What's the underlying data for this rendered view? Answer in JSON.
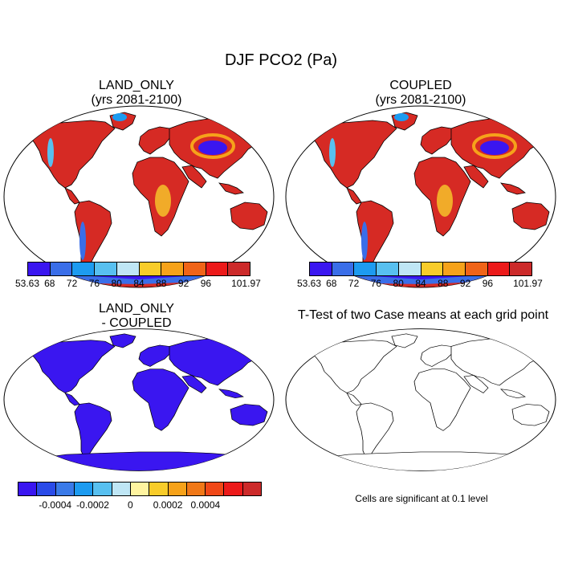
{
  "title": "DJF PCO2 (Pa)",
  "panels": {
    "top_left": {
      "title_line1": "LAND_ONLY",
      "title_line2": "(yrs 2081-2100)"
    },
    "top_right": {
      "title_line1": "COUPLED",
      "title_line2": "(yrs 2081-2100)"
    },
    "bottom_left": {
      "title_line1": "LAND_ONLY",
      "title_line2": "- COUPLED"
    },
    "bottom_right": {
      "title": "T-Test of two Case means at each grid point",
      "note": "Cells are significant at 0.1 level"
    }
  },
  "colorbar_top": {
    "colors": [
      "#3a16f0",
      "#3a6ee8",
      "#1d9bf0",
      "#58c0f0",
      "#bfe6f5",
      "#f8cc2a",
      "#f6a21a",
      "#f06418",
      "#ec1a1a",
      "#cc2a2a"
    ],
    "labels": [
      "53.63",
      "68",
      "72",
      "76",
      "80",
      "84",
      "88",
      "92",
      "96",
      "101.97"
    ]
  },
  "colorbar_bottom": {
    "colors": [
      "#3a16f0",
      "#2a4be8",
      "#3a7ae8",
      "#1d9bf0",
      "#58c0f0",
      "#bfe6f5",
      "#fff4a0",
      "#f8cc2a",
      "#f6a21a",
      "#f07818",
      "#f04818",
      "#ec1a1a",
      "#cc2a2a"
    ],
    "labels": [
      "-0.0004",
      "-0.0002",
      "0",
      "0.0002",
      "0.0004"
    ]
  },
  "map_colors": {
    "land_top": "#d62a24",
    "land_bottom": "#3a16f0",
    "ocean": "#ffffff",
    "coast": "#000000"
  }
}
